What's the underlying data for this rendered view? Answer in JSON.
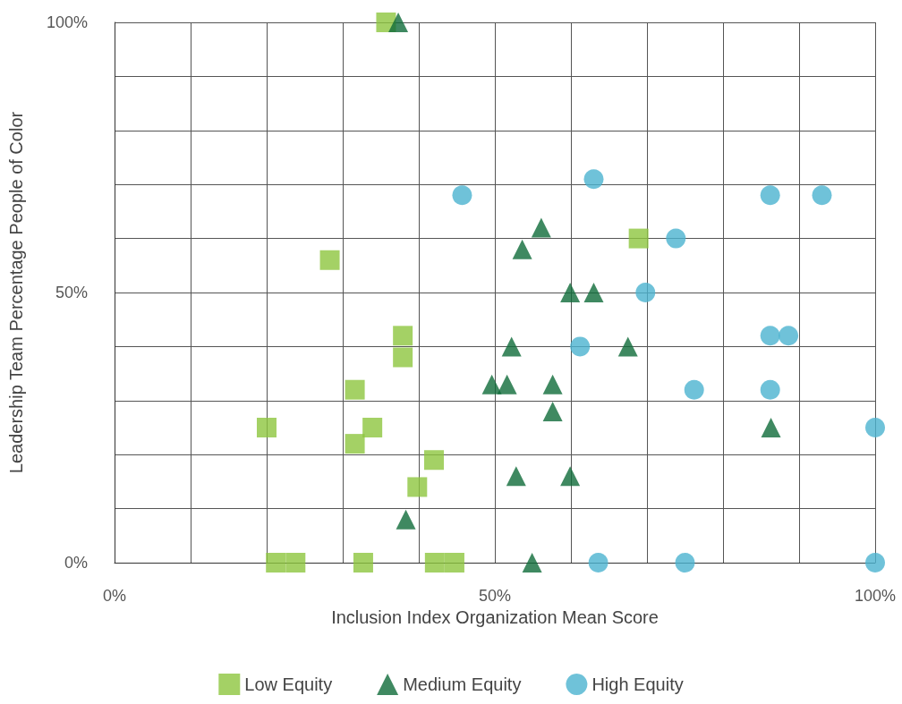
{
  "chart_data": {
    "type": "scatter",
    "xlabel": "Inclusion Index Organization Mean Score",
    "ylabel": "Leadership Team Percentage People of Color",
    "xlim": [
      0,
      100
    ],
    "ylim": [
      0,
      100
    ],
    "xticks": [
      {
        "value": 0,
        "label": "0%"
      },
      {
        "value": 10,
        "label": null
      },
      {
        "value": 20,
        "label": null
      },
      {
        "value": 30,
        "label": null
      },
      {
        "value": 40,
        "label": null
      },
      {
        "value": 50,
        "label": "50%"
      },
      {
        "value": 60,
        "label": null
      },
      {
        "value": 70,
        "label": null
      },
      {
        "value": 80,
        "label": null
      },
      {
        "value": 90,
        "label": null
      },
      {
        "value": 100,
        "label": "100%"
      }
    ],
    "yticks": [
      {
        "value": 0,
        "label": "0%"
      },
      {
        "value": 10,
        "label": null
      },
      {
        "value": 20,
        "label": null
      },
      {
        "value": 30,
        "label": null
      },
      {
        "value": 40,
        "label": null
      },
      {
        "value": 50,
        "label": "50%"
      },
      {
        "value": 60,
        "label": null
      },
      {
        "value": 70,
        "label": null
      },
      {
        "value": 80,
        "label": null
      },
      {
        "value": 90,
        "label": null
      },
      {
        "value": 100,
        "label": "100%"
      }
    ],
    "grid": true,
    "legend": "bottom",
    "series": [
      {
        "name": "Low Equity",
        "color": "#8dc63f",
        "marker": "square",
        "x": [
          35.7,
          28.3,
          37.9,
          37.9,
          31.6,
          20.0,
          31.6,
          33.9,
          42.0,
          39.8,
          68.9,
          21.2,
          23.8,
          32.7,
          42.1,
          44.7
        ],
        "values": [
          100,
          56,
          42,
          38,
          32,
          25,
          22,
          25,
          19,
          14,
          60,
          0,
          0,
          0,
          0,
          0
        ]
      },
      {
        "name": "Medium Equity",
        "color": "#0f6b3a",
        "marker": "triangle",
        "x": [
          37.3,
          56.1,
          53.6,
          59.9,
          63.0,
          52.2,
          67.5,
          49.6,
          51.6,
          57.6,
          57.6,
          86.3,
          52.8,
          59.9,
          38.3,
          54.9
        ],
        "values": [
          100,
          62,
          58,
          50,
          50,
          40,
          40,
          33,
          33,
          33,
          28,
          25,
          16,
          16,
          8,
          0
        ]
      },
      {
        "name": "High Equity",
        "color": "#4bb3cf",
        "marker": "circle",
        "x": [
          45.7,
          63.0,
          86.2,
          93.0,
          73.8,
          69.8,
          61.2,
          86.2,
          88.6,
          76.2,
          86.2,
          100,
          63.6,
          75.0,
          100
        ],
        "values": [
          68,
          71,
          68,
          68,
          60,
          50,
          40,
          42,
          42,
          32,
          32,
          25,
          0,
          0,
          0
        ]
      }
    ]
  }
}
